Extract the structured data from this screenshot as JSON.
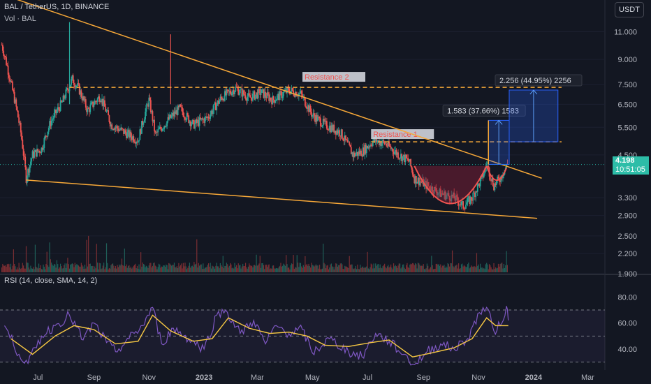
{
  "header": {
    "symbol": "BAL / TetherUS, 1D, BINANCE",
    "volume": "Vol · BAL",
    "rsi": "RSI (14, close, SMA, 14, 2)",
    "currency": "USDT"
  },
  "last_price": {
    "value": "4.198",
    "countdown": "10:51:05",
    "color": "#26a69a"
  },
  "colors": {
    "background": "#131722",
    "up": "#26a69a",
    "down": "#ef5350",
    "trendline": "#f7a838",
    "rsi_line": "#7e57c2",
    "rsi_ma": "#f7c843",
    "cup": "#8b1e3a",
    "projection": "#2962ff"
  },
  "chart_data": [
    {
      "type": "candlestick",
      "title": "BAL / TetherUS, 1D, BINANCE",
      "y_scale": "log",
      "ylim": [
        1.9,
        11.9
      ],
      "y_ticks": [
        "11.000",
        "9.000",
        "7.500",
        "6.500",
        "5.500",
        "4.500",
        "3.300",
        "2.900",
        "2.500",
        "2.200",
        "1.900"
      ],
      "x_ticks": [
        "Jul",
        "Sep",
        "Nov",
        "2023",
        "Mar",
        "May",
        "Jul",
        "Sep",
        "Nov",
        "2024",
        "Mar"
      ],
      "xlim": [
        "2022-05-20",
        "2024-03-20"
      ],
      "close_path": [
        {
          "date": "2022-05-22",
          "close": 10.0
        },
        {
          "date": "2022-06-01",
          "close": 7.6
        },
        {
          "date": "2022-06-12",
          "close": 5.3
        },
        {
          "date": "2022-06-18",
          "close": 3.8
        },
        {
          "date": "2022-06-25",
          "close": 4.5
        },
        {
          "date": "2022-07-05",
          "close": 4.7
        },
        {
          "date": "2022-07-15",
          "close": 5.7
        },
        {
          "date": "2022-07-28",
          "close": 6.6
        },
        {
          "date": "2022-08-08",
          "close": 7.8
        },
        {
          "date": "2022-08-15",
          "close": 7.3
        },
        {
          "date": "2022-08-25",
          "close": 6.2
        },
        {
          "date": "2022-09-08",
          "close": 6.9
        },
        {
          "date": "2022-09-20",
          "close": 5.6
        },
        {
          "date": "2022-10-05",
          "close": 5.3
        },
        {
          "date": "2022-10-20",
          "close": 5.0
        },
        {
          "date": "2022-11-01",
          "close": 6.7
        },
        {
          "date": "2022-11-08",
          "close": 5.2
        },
        {
          "date": "2022-11-20",
          "close": 5.7
        },
        {
          "date": "2022-12-05",
          "close": 6.3
        },
        {
          "date": "2022-12-20",
          "close": 5.6
        },
        {
          "date": "2023-01-05",
          "close": 5.9
        },
        {
          "date": "2023-01-20",
          "close": 6.8
        },
        {
          "date": "2023-02-05",
          "close": 7.3
        },
        {
          "date": "2023-02-20",
          "close": 6.8
        },
        {
          "date": "2023-03-05",
          "close": 7.1
        },
        {
          "date": "2023-03-18",
          "close": 6.7
        },
        {
          "date": "2023-04-05",
          "close": 7.2
        },
        {
          "date": "2023-04-18",
          "close": 7.0
        },
        {
          "date": "2023-05-01",
          "close": 6.0
        },
        {
          "date": "2023-05-15",
          "close": 5.6
        },
        {
          "date": "2023-06-01",
          "close": 5.3
        },
        {
          "date": "2023-06-15",
          "close": 4.5
        },
        {
          "date": "2023-06-25",
          "close": 4.6
        },
        {
          "date": "2023-07-08",
          "close": 5.0
        },
        {
          "date": "2023-07-20",
          "close": 4.9
        },
        {
          "date": "2023-08-05",
          "close": 4.5
        },
        {
          "date": "2023-08-16",
          "close": 4.3
        },
        {
          "date": "2023-08-22",
          "close": 3.8
        },
        {
          "date": "2023-09-05",
          "close": 3.6
        },
        {
          "date": "2023-09-20",
          "close": 3.4
        },
        {
          "date": "2023-10-05",
          "close": 3.3
        },
        {
          "date": "2023-10-15",
          "close": 3.1
        },
        {
          "date": "2023-10-25",
          "close": 3.3
        },
        {
          "date": "2023-11-05",
          "close": 3.8
        },
        {
          "date": "2023-11-10",
          "close": 4.2
        },
        {
          "date": "2023-11-18",
          "close": 3.6
        },
        {
          "date": "2023-11-25",
          "close": 3.8
        },
        {
          "date": "2023-12-03",
          "close": 4.2
        }
      ],
      "spikes": [
        {
          "date": "2022-08-05",
          "high": 11.8
        },
        {
          "date": "2022-11-25",
          "high": 10.8
        }
      ],
      "annotations": [
        {
          "label": "Resistance 2",
          "type": "horizontal_dashed",
          "price": 7.35,
          "start": "2022-08-05",
          "end": "2024-02-01"
        },
        {
          "label": "Resistance 1",
          "type": "horizontal_dashed",
          "price": 4.95,
          "start": "2023-07-05",
          "end": "2024-02-01"
        },
        {
          "type": "trendline",
          "from": {
            "date": "2022-05-20",
            "price": 14.5
          },
          "to": {
            "date": "2024-01-10",
            "price": 3.8
          }
        },
        {
          "type": "trendline",
          "from": {
            "date": "2022-06-18",
            "price": 3.75
          },
          "to": {
            "date": "2024-01-05",
            "price": 2.84
          }
        }
      ],
      "projections": [
        {
          "label": "1.583 (37.66%) 1583",
          "from_price": 4.2,
          "to_price": 5.783
        },
        {
          "label": "2.256 (44.95%) 2256",
          "from_price": 4.95,
          "to_price": 7.206
        }
      ]
    },
    {
      "type": "line",
      "title": "RSI (14, close, SMA, 14, 2)",
      "ylim": [
        25,
        85
      ],
      "y_ticks": [
        "80.00",
        "60.00",
        "40.00"
      ],
      "bands": [
        30,
        50,
        70
      ],
      "series": [
        {
          "name": "RSI",
          "points": [
            {
              "date": "2022-05-25",
              "value": 58
            },
            {
              "date": "2022-06-10",
              "value": 36
            },
            {
              "date": "2022-06-20",
              "value": 29
            },
            {
              "date": "2022-07-05",
              "value": 50
            },
            {
              "date": "2022-07-20",
              "value": 58
            },
            {
              "date": "2022-08-05",
              "value": 66
            },
            {
              "date": "2022-08-20",
              "value": 47
            },
            {
              "date": "2022-09-01",
              "value": 60
            },
            {
              "date": "2022-09-15",
              "value": 45
            },
            {
              "date": "2022-09-25",
              "value": 38
            },
            {
              "date": "2022-10-10",
              "value": 48
            },
            {
              "date": "2022-10-25",
              "value": 58
            },
            {
              "date": "2022-11-05",
              "value": 72
            },
            {
              "date": "2022-11-15",
              "value": 44
            },
            {
              "date": "2022-11-28",
              "value": 56
            },
            {
              "date": "2022-12-15",
              "value": 48
            },
            {
              "date": "2023-01-01",
              "value": 40
            },
            {
              "date": "2023-01-15",
              "value": 66
            },
            {
              "date": "2023-01-25",
              "value": 70
            },
            {
              "date": "2023-02-10",
              "value": 52
            },
            {
              "date": "2023-02-25",
              "value": 62
            },
            {
              "date": "2023-03-10",
              "value": 44
            },
            {
              "date": "2023-03-22",
              "value": 58
            },
            {
              "date": "2023-04-05",
              "value": 52
            },
            {
              "date": "2023-04-20",
              "value": 55
            },
            {
              "date": "2023-05-01",
              "value": 37
            },
            {
              "date": "2023-05-20",
              "value": 48
            },
            {
              "date": "2023-06-10",
              "value": 38
            },
            {
              "date": "2023-06-25",
              "value": 34
            },
            {
              "date": "2023-07-10",
              "value": 52
            },
            {
              "date": "2023-07-25",
              "value": 46
            },
            {
              "date": "2023-08-10",
              "value": 36
            },
            {
              "date": "2023-08-22",
              "value": 28
            },
            {
              "date": "2023-09-05",
              "value": 38
            },
            {
              "date": "2023-09-20",
              "value": 44
            },
            {
              "date": "2023-10-05",
              "value": 40
            },
            {
              "date": "2023-10-20",
              "value": 48
            },
            {
              "date": "2023-11-02",
              "value": 68
            },
            {
              "date": "2023-11-10",
              "value": 72
            },
            {
              "date": "2023-11-18",
              "value": 54
            },
            {
              "date": "2023-11-25",
              "value": 58
            },
            {
              "date": "2023-12-02",
              "value": 73
            },
            {
              "date": "2023-12-04",
              "value": 62
            }
          ]
        },
        {
          "name": "SMA",
          "points": [
            {
              "date": "2022-06-01",
              "value": 48
            },
            {
              "date": "2022-06-25",
              "value": 36
            },
            {
              "date": "2022-07-20",
              "value": 50
            },
            {
              "date": "2022-08-10",
              "value": 58
            },
            {
              "date": "2022-09-01",
              "value": 55
            },
            {
              "date": "2022-09-25",
              "value": 44
            },
            {
              "date": "2022-10-20",
              "value": 46
            },
            {
              "date": "2022-11-05",
              "value": 66
            },
            {
              "date": "2022-11-25",
              "value": 54
            },
            {
              "date": "2022-12-20",
              "value": 46
            },
            {
              "date": "2023-01-10",
              "value": 48
            },
            {
              "date": "2023-01-28",
              "value": 64
            },
            {
              "date": "2023-02-20",
              "value": 56
            },
            {
              "date": "2023-03-15",
              "value": 52
            },
            {
              "date": "2023-04-05",
              "value": 53
            },
            {
              "date": "2023-04-25",
              "value": 50
            },
            {
              "date": "2023-05-15",
              "value": 43
            },
            {
              "date": "2023-06-10",
              "value": 42
            },
            {
              "date": "2023-07-05",
              "value": 45
            },
            {
              "date": "2023-07-25",
              "value": 47
            },
            {
              "date": "2023-08-20",
              "value": 34
            },
            {
              "date": "2023-09-10",
              "value": 37
            },
            {
              "date": "2023-10-05",
              "value": 41
            },
            {
              "date": "2023-10-25",
              "value": 48
            },
            {
              "date": "2023-11-10",
              "value": 64
            },
            {
              "date": "2023-11-20",
              "value": 58
            },
            {
              "date": "2023-12-04",
              "value": 58
            }
          ]
        }
      ]
    }
  ]
}
